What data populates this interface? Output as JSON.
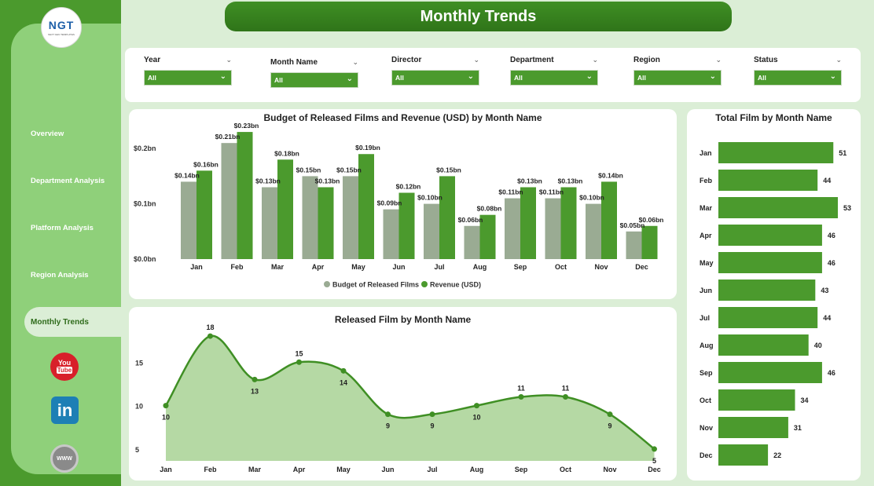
{
  "header": {
    "title": "Monthly Trends"
  },
  "logo": {
    "text": "NGT",
    "subtext": "NEXT GEN TEMPLATES"
  },
  "sidebar": {
    "items": [
      {
        "label": "Overview"
      },
      {
        "label": "Department Analysis"
      },
      {
        "label": "Platform Analysis"
      },
      {
        "label": "Region Analysis"
      },
      {
        "label": "Monthly Trends",
        "active": true
      }
    ],
    "social": [
      {
        "icon": "youtube-icon",
        "text_top": "You",
        "text_bottom": "Tube",
        "color": "#d8202a"
      },
      {
        "icon": "linkedin-icon",
        "text": "in",
        "color": "#1d7fb5"
      },
      {
        "icon": "website-icon",
        "text": "WWW",
        "color": "#8a8a8a"
      }
    ]
  },
  "filters": [
    {
      "label": "Year",
      "value": "All"
    },
    {
      "label": "Month Name",
      "value": "All"
    },
    {
      "label": "Director",
      "value": "All"
    },
    {
      "label": "Department",
      "value": "All"
    },
    {
      "label": "Region",
      "value": "All"
    },
    {
      "label": "Status",
      "value": "All"
    }
  ],
  "colors": {
    "dark_green": "#4b9a2d",
    "grey_bar": "#9aab93",
    "area_fill": "#b5d9a4",
    "line": "#3f8f24"
  },
  "chart_data": [
    {
      "type": "bar",
      "title": "Budget of Released Films and Revenue (USD) by Month Name",
      "categories": [
        "Jan",
        "Feb",
        "Mar",
        "Apr",
        "May",
        "Jun",
        "Jul",
        "Aug",
        "Sep",
        "Oct",
        "Nov",
        "Dec"
      ],
      "series": [
        {
          "name": "Budget of Released Films",
          "values": [
            0.14,
            0.21,
            0.13,
            0.15,
            0.15,
            0.09,
            0.1,
            0.06,
            0.11,
            0.11,
            0.1,
            0.05
          ],
          "labels": [
            "$0.14bn",
            "$0.21bn",
            "$0.13bn",
            "$0.15bn",
            "$0.15bn",
            "$0.09bn",
            "$0.10bn",
            "$0.06bn",
            "$0.11bn",
            "$0.11bn",
            "$0.10bn",
            "$0.05bn"
          ]
        },
        {
          "name": "Revenue (USD)",
          "values": [
            0.16,
            0.23,
            0.18,
            0.13,
            0.19,
            0.12,
            0.15,
            0.08,
            0.13,
            0.13,
            0.14,
            0.06
          ],
          "labels": [
            "$0.16bn",
            "$0.23bn",
            "$0.18bn",
            "$0.13bn",
            "$0.19bn",
            "$0.12bn",
            "$0.15bn",
            "$0.08bn",
            "$0.13bn",
            "$0.13bn",
            "$0.14bn",
            "$0.06bn"
          ]
        }
      ],
      "yticks": [
        "$0.0bn",
        "$0.1bn",
        "$0.2bn"
      ],
      "ylim": [
        0,
        0.25
      ],
      "legend": "bottom"
    },
    {
      "type": "area",
      "title": "Released Film by Month Name",
      "categories": [
        "Jan",
        "Feb",
        "Mar",
        "Apr",
        "May",
        "Jun",
        "Jul",
        "Aug",
        "Sep",
        "Oct",
        "Nov",
        "Dec"
      ],
      "values": [
        10,
        18,
        13,
        15,
        14,
        9,
        9,
        10,
        11,
        11,
        9,
        5
      ],
      "yticks": [
        "5",
        "10",
        "15"
      ],
      "ylim": [
        4,
        19
      ]
    },
    {
      "type": "bar",
      "orientation": "horizontal",
      "title": "Total Film by Month Name",
      "categories": [
        "Jan",
        "Feb",
        "Mar",
        "Apr",
        "May",
        "Jun",
        "Jul",
        "Aug",
        "Sep",
        "Oct",
        "Nov",
        "Dec"
      ],
      "values": [
        51,
        44,
        53,
        46,
        46,
        43,
        44,
        40,
        46,
        34,
        31,
        22
      ]
    }
  ]
}
